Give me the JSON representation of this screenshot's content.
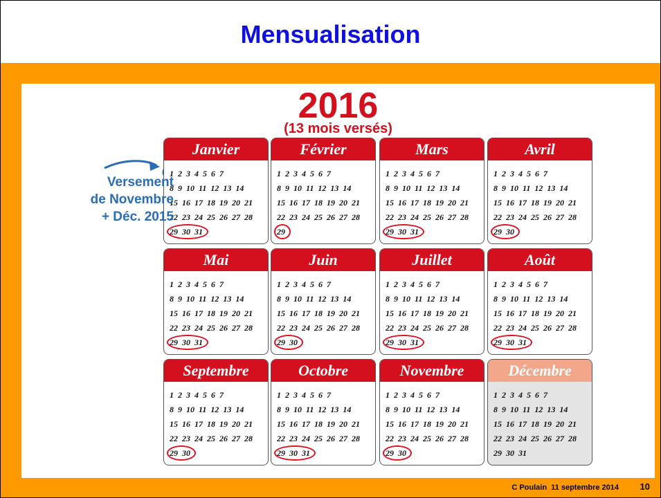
{
  "header": {
    "title": "Mensualisation"
  },
  "calendar": {
    "year": "2016",
    "subtitle": "(13 mois versés)",
    "months": [
      {
        "name": "Janvier",
        "weeks": [
          "1 2 3 4 5 6 7",
          "8 9 10 11 12 13 14",
          "15 16 17 18 19 20 21",
          "22 23 24 25 26 27 28",
          "29 30 31"
        ]
      },
      {
        "name": "Février",
        "weeks": [
          "1 2 3 4 5 6 7",
          "8 9 10 11 12 13 14",
          "15 16 17 18 19 20 21",
          "22 23 24 25 26 27 28",
          "29"
        ]
      },
      {
        "name": "Mars",
        "weeks": [
          "1 2 3 4 5 6 7",
          "8 9 10 11 12 13 14",
          "15 16 17 18 19 20 21",
          "22 23 24 25 26 27 28",
          "29 30 31"
        ]
      },
      {
        "name": "Avril",
        "weeks": [
          "1 2 3 4 5 6 7",
          "8 9 10 11 12 13 14",
          "15 16 17 18 19 20 21",
          "22 23 24 25 26 27 28",
          "29 30"
        ]
      },
      {
        "name": "Mai",
        "weeks": [
          "1 2 3 4 5 6 7",
          "8 9 10 11 12 13 14",
          "15 16 17 18 19 20 21",
          "22 23 24 25 26 27 28",
          "29 30 31"
        ]
      },
      {
        "name": "Juin",
        "weeks": [
          "1 2 3 4 5 6 7",
          "8 9 10 11 12 13 14",
          "15 16 17 18 19 20 21",
          "22 23 24 25 26 27 28",
          "29 30"
        ]
      },
      {
        "name": "Juillet",
        "weeks": [
          "1 2 3 4 5 6 7",
          "8 9 10 11 12 13 14",
          "15 16 17 18 19 20 21",
          "22 23 24 25 26 27 28",
          "29 30 31"
        ]
      },
      {
        "name": "Août",
        "weeks": [
          "1 2 3 4 5 6 7",
          "8 9 10 11 12 13 14",
          "15 16 17 18 19 20 21",
          "22 23 24 25 26 27 28",
          "29 30 31"
        ]
      },
      {
        "name": "Septembre",
        "weeks": [
          "1 2 3 4 5 6 7",
          "8 9 10 11 12 13 14",
          "15 16 17 18 19 20 21",
          "22 23 24 25 26 27 28",
          "29 30"
        ]
      },
      {
        "name": "Octobre",
        "weeks": [
          "1 2 3 4 5 6 7",
          "8 9 10 11 12 13 14",
          "15 16 17 18 19 20 21",
          "22 23 24 25 26 27 28",
          "29 30 31"
        ]
      },
      {
        "name": "Novembre",
        "weeks": [
          "1 2 3 4 5 6 7",
          "8 9 10 11 12 13 14",
          "15 16 17 18 19 20 21",
          "22 23 24 25 26 27 28",
          "29 30"
        ]
      },
      {
        "name": "Décembre",
        "weeks": [
          "1 2 3 4 5 6 7",
          "8 9 10 11 12 13 14",
          "15 16 17 18 19 20 21",
          "22 23 24 25 26 27 28",
          "29 30 31"
        ]
      }
    ]
  },
  "annotation": {
    "lines": [
      "Versement",
      "de Novembre",
      "+ Déc. 2015"
    ]
  },
  "footer": {
    "author": "C Poulain  11 septembre 2014",
    "page": "10"
  }
}
